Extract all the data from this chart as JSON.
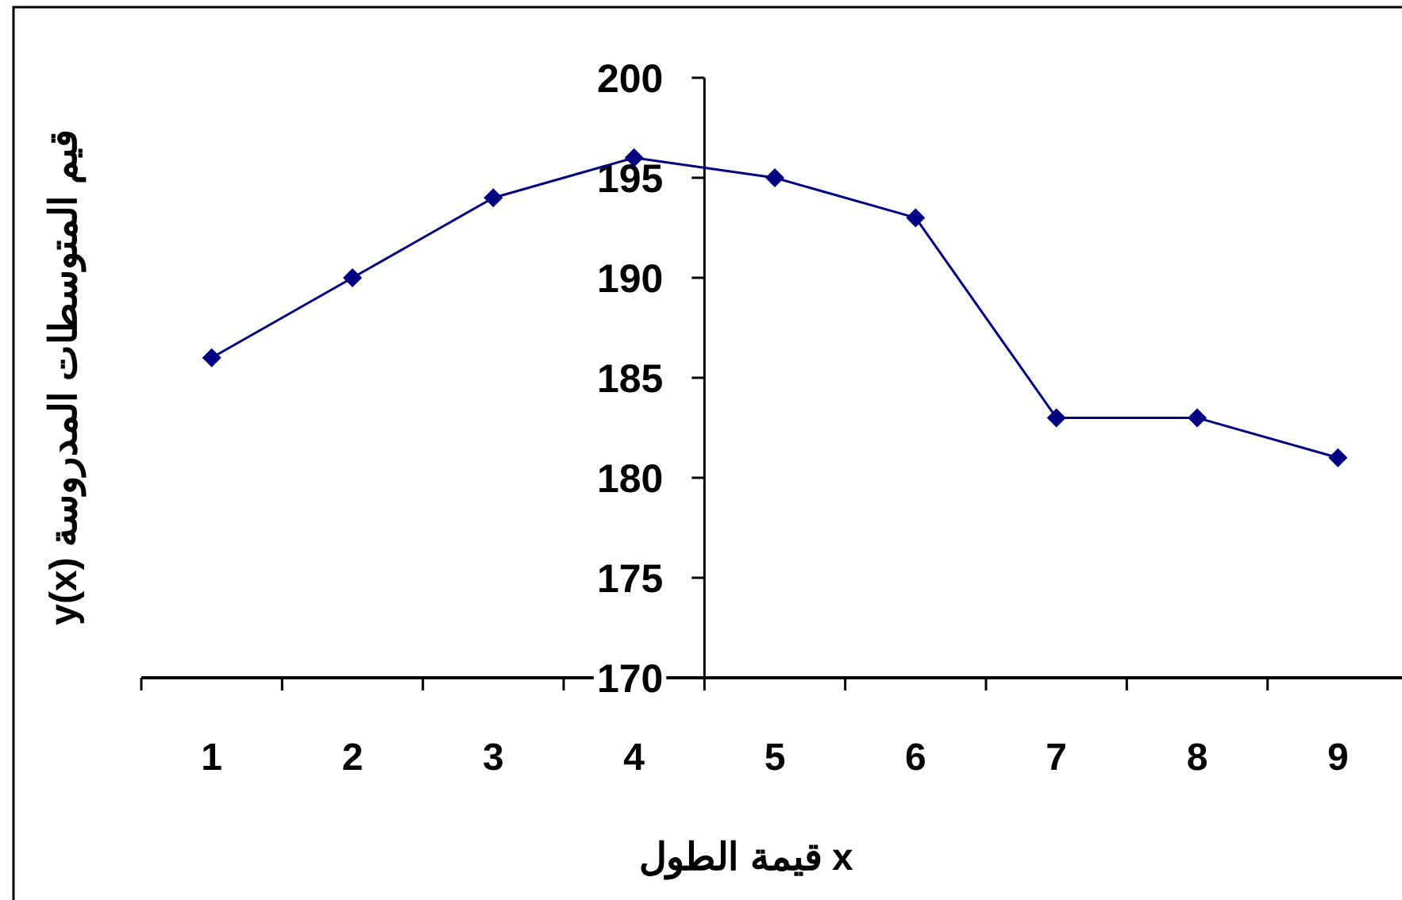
{
  "chart_data": {
    "type": "line",
    "xlabel": "قيمة الطول x",
    "ylabel": "y(x) قيم المتوسطات المدروسة",
    "categories": [
      "1",
      "2",
      "3",
      "4",
      "5",
      "6",
      "7",
      "8",
      "9"
    ],
    "series": [
      {
        "color": "#000080",
        "values": [
          186,
          190,
          194,
          196,
          195,
          193,
          183,
          183,
          181
        ]
      }
    ],
    "ylim": [
      170,
      200
    ],
    "yticks": [
      170,
      175,
      180,
      185,
      190,
      195,
      200
    ],
    "marker": "diamond",
    "line_style": "solid"
  }
}
